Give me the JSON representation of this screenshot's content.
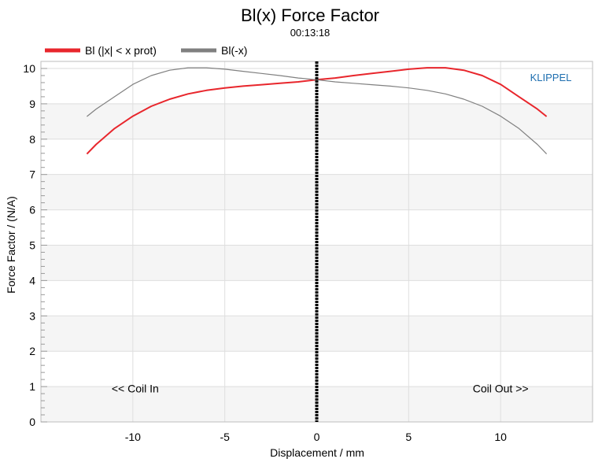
{
  "chart_data": {
    "type": "line",
    "title": "Bl(x) Force Factor",
    "subtitle": "00:13:18",
    "xlabel": "Displacement / mm",
    "ylabel": "Force Factor / (N/A)",
    "xlim": [
      -15,
      15
    ],
    "ylim": [
      0,
      10.2
    ],
    "x_ticks": [
      -10,
      -5,
      0,
      5,
      10
    ],
    "y_ticks": [
      0,
      1,
      2,
      3,
      4,
      5,
      6,
      7,
      8,
      9,
      10
    ],
    "grid": true,
    "legend_position": "top-left",
    "brand": "KLIPPEL",
    "annotations": [
      {
        "text": "<< Coil In",
        "x": -10,
        "y": 0.75
      },
      {
        "text": "Coil Out >>",
        "x": 10,
        "y": 0.75
      }
    ],
    "marker_line_x": 0,
    "series": [
      {
        "name": "Bl (|x| < x prot)",
        "color": "#e8262c",
        "x": [
          -12.5,
          -12,
          -11,
          -10,
          -9,
          -8,
          -7,
          -6,
          -5,
          -4,
          -3,
          -2,
          -1,
          0,
          1,
          2,
          3,
          4,
          5,
          6,
          7,
          8,
          9,
          10,
          11,
          12,
          12.5
        ],
        "y": [
          7.58,
          7.85,
          8.3,
          8.65,
          8.93,
          9.13,
          9.28,
          9.38,
          9.45,
          9.5,
          9.54,
          9.58,
          9.62,
          9.68,
          9.73,
          9.8,
          9.86,
          9.92,
          9.98,
          10.02,
          10.02,
          9.95,
          9.8,
          9.55,
          9.2,
          8.85,
          8.64
        ]
      },
      {
        "name": "Bl(-x)",
        "color": "#808080",
        "x": [
          -12.5,
          -12,
          -11,
          -10,
          -9,
          -8,
          -7,
          -6,
          -5,
          -4,
          -3,
          -2,
          -1,
          0,
          1,
          2,
          3,
          4,
          5,
          6,
          7,
          8,
          9,
          10,
          11,
          12,
          12.5
        ],
        "y": [
          8.64,
          8.85,
          9.2,
          9.55,
          9.8,
          9.95,
          10.02,
          10.02,
          9.98,
          9.92,
          9.86,
          9.8,
          9.73,
          9.68,
          9.62,
          9.58,
          9.54,
          9.5,
          9.45,
          9.38,
          9.28,
          9.13,
          8.93,
          8.65,
          8.3,
          7.85,
          7.58
        ]
      }
    ]
  }
}
